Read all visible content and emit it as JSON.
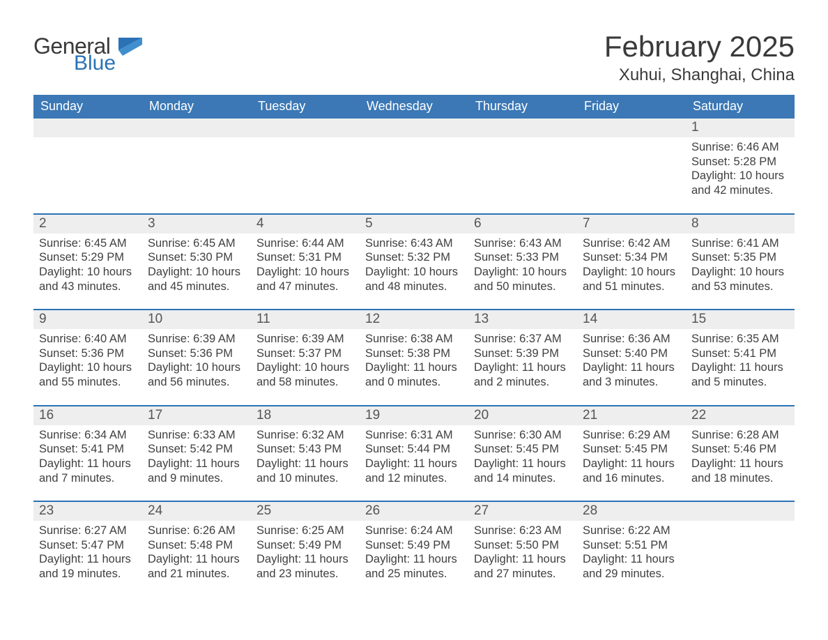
{
  "logo": {
    "word1": "General",
    "word2": "Blue"
  },
  "title": "February 2025",
  "location": "Xuhui, Shanghai, China",
  "colors": {
    "header_bg": "#3b78b5",
    "header_text": "#ffffff",
    "accent_border": "#2a72b5",
    "daynum_bg": "#eeeeee",
    "body_text": "#3a3a3a",
    "logo_blue": "#2a72b5"
  },
  "weekdays": [
    "Sunday",
    "Monday",
    "Tuesday",
    "Wednesday",
    "Thursday",
    "Friday",
    "Saturday"
  ],
  "weeks": [
    [
      null,
      null,
      null,
      null,
      null,
      null,
      {
        "n": "1",
        "sunrise": "6:46 AM",
        "sunset": "5:28 PM",
        "dayl1": "Daylight: 10 hours",
        "dayl2": "and 42 minutes."
      }
    ],
    [
      {
        "n": "2",
        "sunrise": "6:45 AM",
        "sunset": "5:29 PM",
        "dayl1": "Daylight: 10 hours",
        "dayl2": "and 43 minutes."
      },
      {
        "n": "3",
        "sunrise": "6:45 AM",
        "sunset": "5:30 PM",
        "dayl1": "Daylight: 10 hours",
        "dayl2": "and 45 minutes."
      },
      {
        "n": "4",
        "sunrise": "6:44 AM",
        "sunset": "5:31 PM",
        "dayl1": "Daylight: 10 hours",
        "dayl2": "and 47 minutes."
      },
      {
        "n": "5",
        "sunrise": "6:43 AM",
        "sunset": "5:32 PM",
        "dayl1": "Daylight: 10 hours",
        "dayl2": "and 48 minutes."
      },
      {
        "n": "6",
        "sunrise": "6:43 AM",
        "sunset": "5:33 PM",
        "dayl1": "Daylight: 10 hours",
        "dayl2": "and 50 minutes."
      },
      {
        "n": "7",
        "sunrise": "6:42 AM",
        "sunset": "5:34 PM",
        "dayl1": "Daylight: 10 hours",
        "dayl2": "and 51 minutes."
      },
      {
        "n": "8",
        "sunrise": "6:41 AM",
        "sunset": "5:35 PM",
        "dayl1": "Daylight: 10 hours",
        "dayl2": "and 53 minutes."
      }
    ],
    [
      {
        "n": "9",
        "sunrise": "6:40 AM",
        "sunset": "5:36 PM",
        "dayl1": "Daylight: 10 hours",
        "dayl2": "and 55 minutes."
      },
      {
        "n": "10",
        "sunrise": "6:39 AM",
        "sunset": "5:36 PM",
        "dayl1": "Daylight: 10 hours",
        "dayl2": "and 56 minutes."
      },
      {
        "n": "11",
        "sunrise": "6:39 AM",
        "sunset": "5:37 PM",
        "dayl1": "Daylight: 10 hours",
        "dayl2": "and 58 minutes."
      },
      {
        "n": "12",
        "sunrise": "6:38 AM",
        "sunset": "5:38 PM",
        "dayl1": "Daylight: 11 hours",
        "dayl2": "and 0 minutes."
      },
      {
        "n": "13",
        "sunrise": "6:37 AM",
        "sunset": "5:39 PM",
        "dayl1": "Daylight: 11 hours",
        "dayl2": "and 2 minutes."
      },
      {
        "n": "14",
        "sunrise": "6:36 AM",
        "sunset": "5:40 PM",
        "dayl1": "Daylight: 11 hours",
        "dayl2": "and 3 minutes."
      },
      {
        "n": "15",
        "sunrise": "6:35 AM",
        "sunset": "5:41 PM",
        "dayl1": "Daylight: 11 hours",
        "dayl2": "and 5 minutes."
      }
    ],
    [
      {
        "n": "16",
        "sunrise": "6:34 AM",
        "sunset": "5:41 PM",
        "dayl1": "Daylight: 11 hours",
        "dayl2": "and 7 minutes."
      },
      {
        "n": "17",
        "sunrise": "6:33 AM",
        "sunset": "5:42 PM",
        "dayl1": "Daylight: 11 hours",
        "dayl2": "and 9 minutes."
      },
      {
        "n": "18",
        "sunrise": "6:32 AM",
        "sunset": "5:43 PM",
        "dayl1": "Daylight: 11 hours",
        "dayl2": "and 10 minutes."
      },
      {
        "n": "19",
        "sunrise": "6:31 AM",
        "sunset": "5:44 PM",
        "dayl1": "Daylight: 11 hours",
        "dayl2": "and 12 minutes."
      },
      {
        "n": "20",
        "sunrise": "6:30 AM",
        "sunset": "5:45 PM",
        "dayl1": "Daylight: 11 hours",
        "dayl2": "and 14 minutes."
      },
      {
        "n": "21",
        "sunrise": "6:29 AM",
        "sunset": "5:45 PM",
        "dayl1": "Daylight: 11 hours",
        "dayl2": "and 16 minutes."
      },
      {
        "n": "22",
        "sunrise": "6:28 AM",
        "sunset": "5:46 PM",
        "dayl1": "Daylight: 11 hours",
        "dayl2": "and 18 minutes."
      }
    ],
    [
      {
        "n": "23",
        "sunrise": "6:27 AM",
        "sunset": "5:47 PM",
        "dayl1": "Daylight: 11 hours",
        "dayl2": "and 19 minutes."
      },
      {
        "n": "24",
        "sunrise": "6:26 AM",
        "sunset": "5:48 PM",
        "dayl1": "Daylight: 11 hours",
        "dayl2": "and 21 minutes."
      },
      {
        "n": "25",
        "sunrise": "6:25 AM",
        "sunset": "5:49 PM",
        "dayl1": "Daylight: 11 hours",
        "dayl2": "and 23 minutes."
      },
      {
        "n": "26",
        "sunrise": "6:24 AM",
        "sunset": "5:49 PM",
        "dayl1": "Daylight: 11 hours",
        "dayl2": "and 25 minutes."
      },
      {
        "n": "27",
        "sunrise": "6:23 AM",
        "sunset": "5:50 PM",
        "dayl1": "Daylight: 11 hours",
        "dayl2": "and 27 minutes."
      },
      {
        "n": "28",
        "sunrise": "6:22 AM",
        "sunset": "5:51 PM",
        "dayl1": "Daylight: 11 hours",
        "dayl2": "and 29 minutes."
      },
      null
    ]
  ],
  "labels": {
    "sunrise_prefix": "Sunrise: ",
    "sunset_prefix": "Sunset: "
  }
}
